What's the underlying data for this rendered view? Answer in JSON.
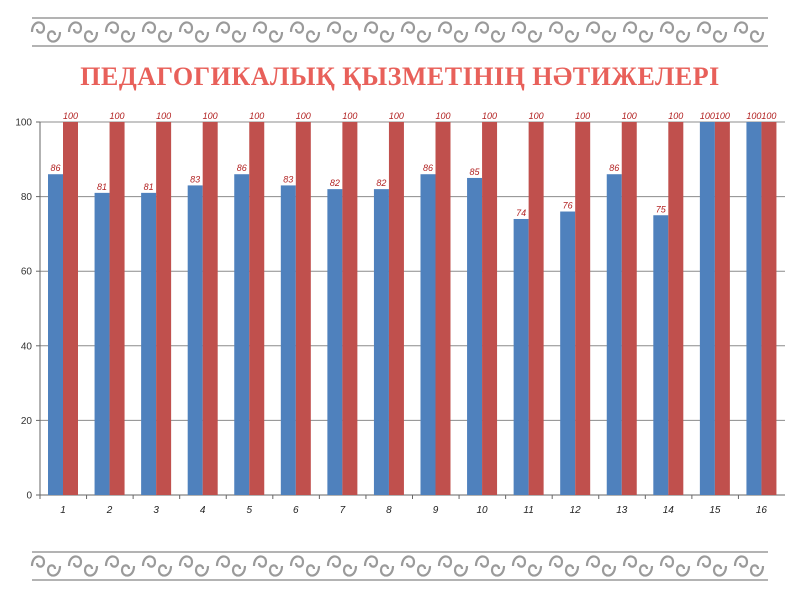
{
  "title": "ПЕДАГОГИКАЛЫҚ ҚЫЗМЕТІНІҢ НӘТИЖЕЛЕРІ",
  "colors": {
    "title": "#e8605a",
    "series1": "#4f81bd",
    "series2": "#c0504d",
    "ornament": "#9a9a9a"
  },
  "chart_data": {
    "type": "bar",
    "categories": [
      "1",
      "2",
      "3",
      "4",
      "5",
      "6",
      "7",
      "8",
      "9",
      "10",
      "11",
      "12",
      "13",
      "14",
      "15",
      "16"
    ],
    "series": [
      {
        "values": [
          86,
          81,
          81,
          83,
          86,
          83,
          82,
          82,
          86,
          85,
          74,
          76,
          86,
          75,
          100,
          100
        ]
      },
      {
        "values": [
          100,
          100,
          100,
          100,
          100,
          100,
          100,
          100,
          100,
          100,
          100,
          100,
          100,
          100,
          100,
          100
        ]
      }
    ],
    "yticks": [
      0,
      20,
      40,
      60,
      80,
      100
    ],
    "ylim": [
      0,
      100
    ],
    "grid": true,
    "legend": "none",
    "data_labels": true
  }
}
